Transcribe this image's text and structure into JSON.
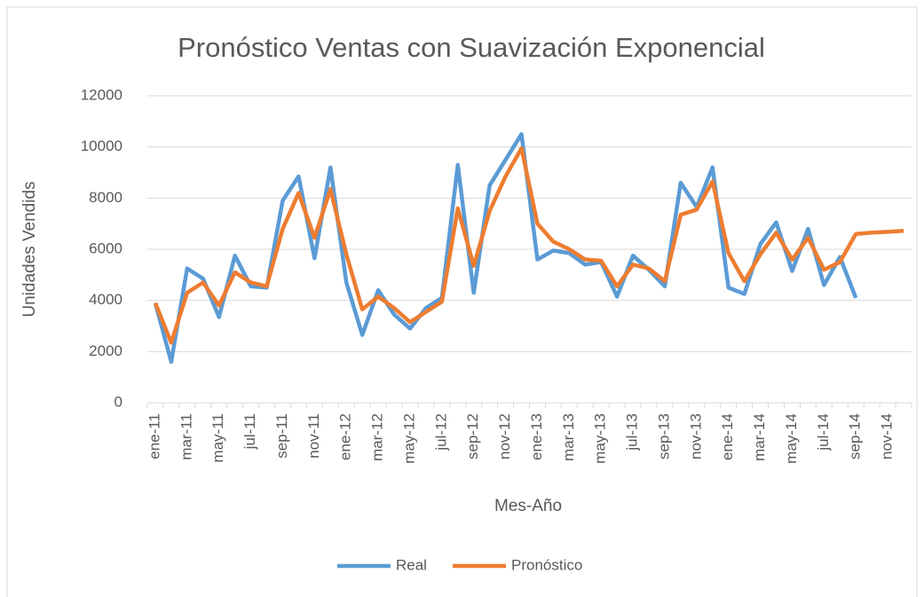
{
  "chart_data": {
    "type": "line",
    "title": "Pronóstico Ventas con Suavización Exponencial",
    "x_label": "Mes-Año",
    "y_label": "Unidades Vendids",
    "categories": [
      "ene-11",
      null,
      "mar-11",
      null,
      "may-11",
      null,
      "jul-11",
      null,
      "sep-11",
      null,
      "nov-11",
      null,
      "ene-12",
      null,
      "mar-12",
      null,
      "may-12",
      null,
      "jul-12",
      null,
      "sep-12",
      null,
      "nov-12",
      null,
      "ene-13",
      null,
      "mar-13",
      null,
      "may-13",
      null,
      "jul-13",
      null,
      "sep-13",
      null,
      "nov-13",
      null,
      "ene-14",
      null,
      "mar-14",
      null,
      "may-14",
      null,
      "jul-14",
      null,
      "sep-14",
      null,
      "nov-14",
      null
    ],
    "series": [
      {
        "name": "Real",
        "color": "#5b9bd5",
        "values": [
          3900,
          1600,
          5250,
          4850,
          3350,
          5750,
          4550,
          4500,
          7900,
          8850,
          5650,
          9200,
          4700,
          2650,
          4400,
          3450,
          2900,
          3700,
          4100,
          9300,
          4300,
          8500,
          9500,
          10500,
          5600,
          5950,
          5850,
          5400,
          5500,
          4150,
          5750,
          5200,
          4550,
          8600,
          7650,
          9200,
          4500,
          4250,
          6200,
          7050,
          5150,
          6800,
          4600,
          5700,
          4100,
          null,
          null,
          null
        ]
      },
      {
        "name": "Pronóstico",
        "color": "#ed7d31",
        "values": [
          3900,
          2350,
          4300,
          4700,
          3800,
          5100,
          4700,
          4550,
          6800,
          8200,
          6450,
          8350,
          5800,
          3650,
          4150,
          3700,
          3150,
          3550,
          3950,
          7600,
          5350,
          7500,
          8850,
          9950,
          7000,
          6300,
          6000,
          5600,
          5550,
          4550,
          5400,
          5250,
          4750,
          7350,
          7550,
          8650,
          5850,
          4750,
          5800,
          6650,
          5600,
          6450,
          5200,
          5500,
          6600,
          6650,
          6680,
          6720
        ]
      }
    ],
    "ylim": [
      0,
      12000
    ],
    "yticks": [
      0,
      2000,
      4000,
      6000,
      8000,
      10000,
      12000
    ],
    "grid": true,
    "legend": "bottom"
  }
}
